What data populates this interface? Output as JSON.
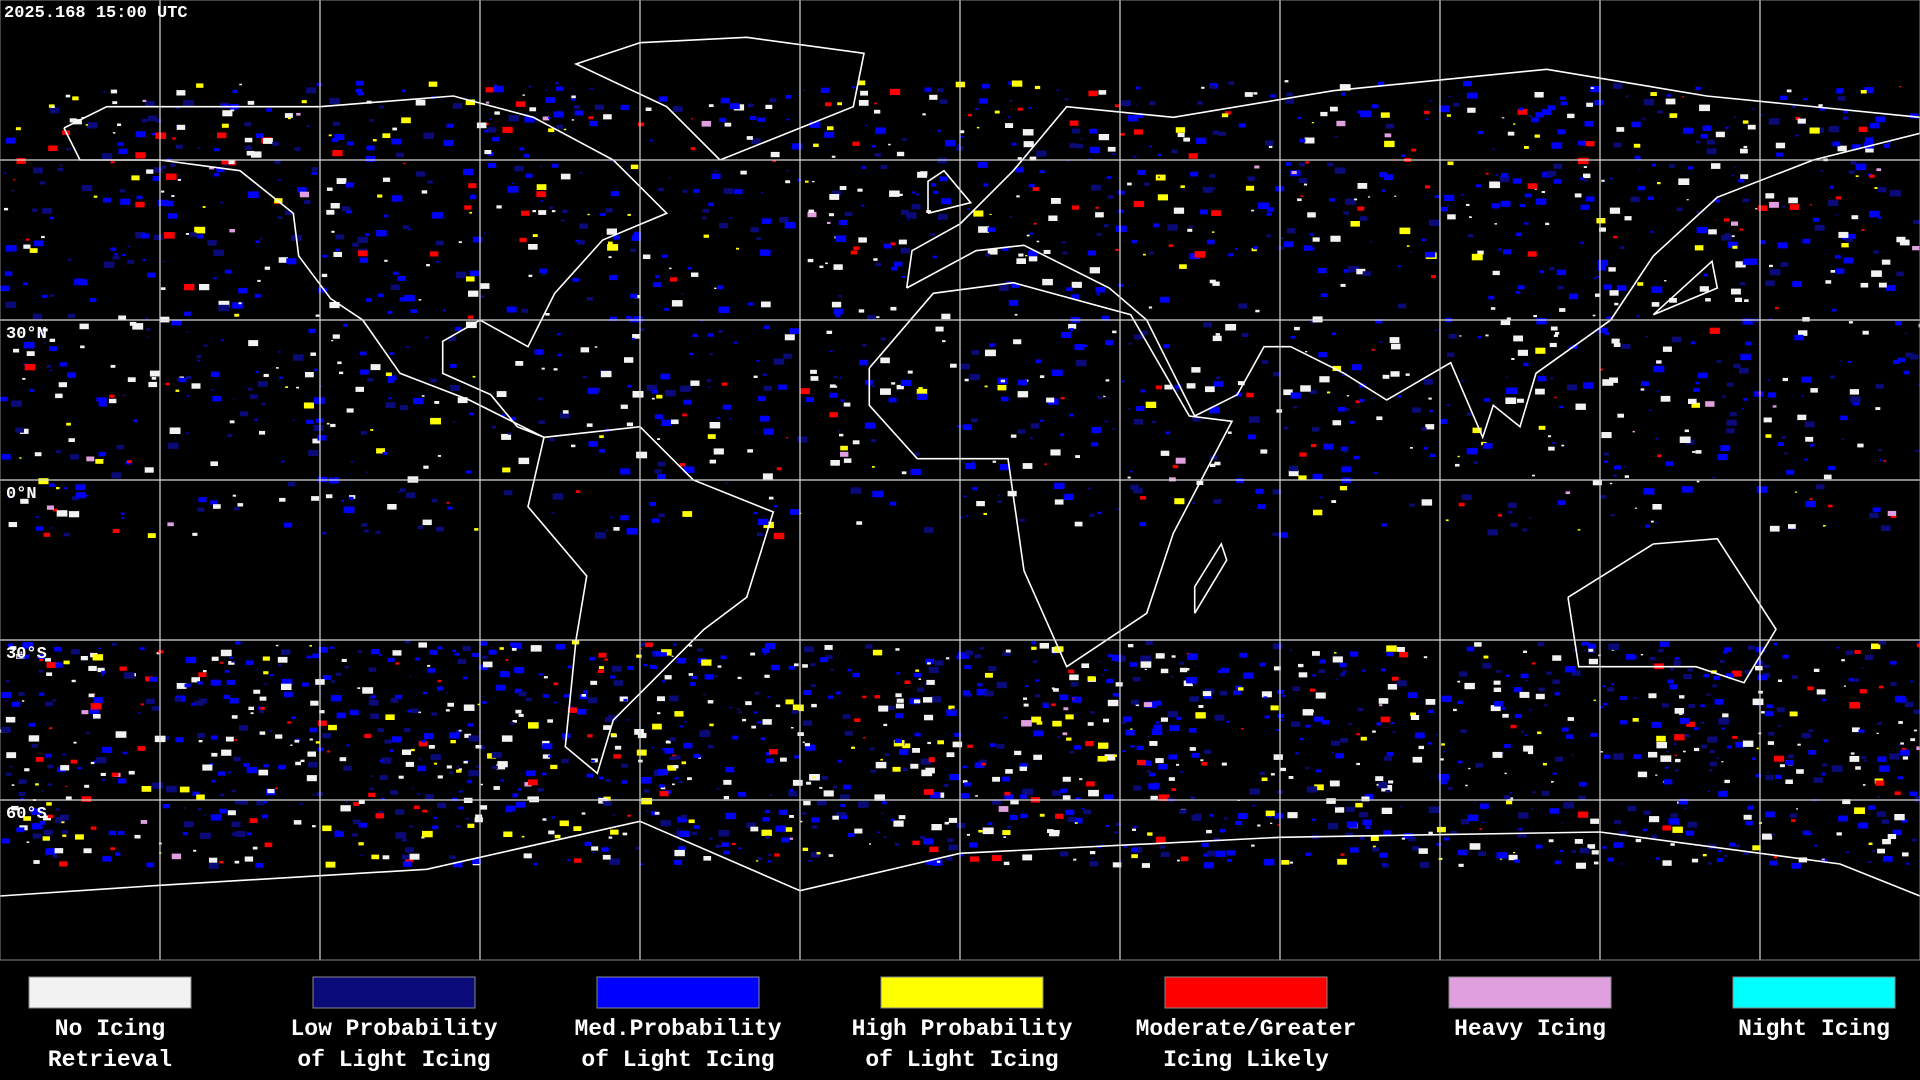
{
  "header": {
    "timestamp": "2025.168 15:00 UTC"
  },
  "map": {
    "lat_labels": [
      "30°N",
      "0°N",
      "30°S",
      "60°S"
    ]
  },
  "legend": {
    "items": [
      {
        "label": [
          "No Icing",
          "Retrieval"
        ],
        "color": "#f2f2f2"
      },
      {
        "label": [
          "Low Probability",
          "of Light Icing"
        ],
        "color": "#0a0a78"
      },
      {
        "label": [
          "Med.Probability",
          "of Light Icing"
        ],
        "color": "#0000ff"
      },
      {
        "label": [
          "High Probability",
          "of Light Icing"
        ],
        "color": "#ffff00"
      },
      {
        "label": [
          "Moderate/Greater",
          "Icing Likely"
        ],
        "color": "#ff0000"
      },
      {
        "label": [
          "Heavy Icing",
          ""
        ],
        "color": "#e0a0e0"
      },
      {
        "label": [
          "Night Icing",
          ""
        ],
        "color": "#00ffff"
      }
    ]
  }
}
